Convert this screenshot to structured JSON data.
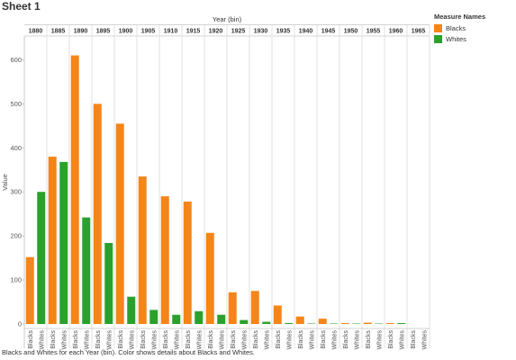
{
  "sheet": {
    "title": "Sheet 1"
  },
  "caption": "Blacks and Whites for each Year (bin).  Color shows details about Blacks and Whites.",
  "legend": {
    "title": "Measure Names",
    "items": [
      {
        "label": "Blacks",
        "color": "#F58518"
      },
      {
        "label": "Whites",
        "color": "#2CA02C"
      }
    ]
  },
  "chart_data": {
    "type": "bar",
    "column_header": "Year (bin)",
    "ylabel": "Value",
    "ylim": [
      0,
      650
    ],
    "yticks": [
      0,
      100,
      200,
      300,
      400,
      500,
      600
    ],
    "grid": false,
    "legend_position": "right",
    "categories": [
      "1880",
      "1885",
      "1890",
      "1895",
      "1900",
      "1905",
      "1910",
      "1915",
      "1920",
      "1925",
      "1930",
      "1935",
      "1940",
      "1945",
      "1950",
      "1955",
      "1960",
      "1965"
    ],
    "sub_categories": [
      "Blacks",
      "Whites"
    ],
    "series": [
      {
        "name": "Blacks",
        "color": "#F58518",
        "values": [
          152,
          380,
          610,
          500,
          455,
          335,
          290,
          278,
          207,
          72,
          75,
          42,
          17,
          12,
          2,
          3,
          2,
          0
        ]
      },
      {
        "name": "Whites",
        "color": "#2CA02C",
        "values": [
          300,
          368,
          242,
          184,
          62,
          32,
          21,
          29,
          21,
          9,
          5,
          2,
          1,
          1,
          1,
          1,
          2,
          0
        ]
      }
    ]
  }
}
